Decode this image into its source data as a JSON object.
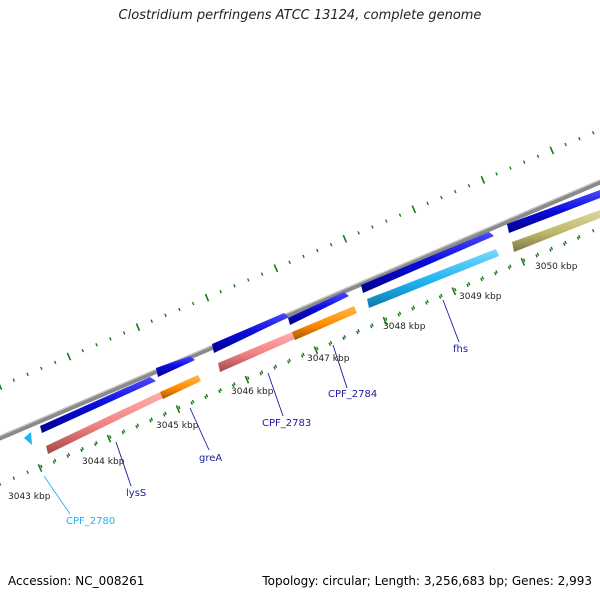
{
  "title": "Clostridium perfringens ATCC 13124, complete genome",
  "footer": {
    "accession_label": "Accession: NC_008261",
    "topology": "Topology: circular",
    "length": "Length: 3,256,683 bp",
    "genes": "Genes: 2,993"
  },
  "colors": {
    "backbone": "#8a8a8a",
    "strand_forward": "#0a0adc",
    "cds_pink": "#f08080",
    "cds_orange": "#ff8c00",
    "cds_cyan": "#1eb4f0",
    "cds_olive": "#bdb76b",
    "tick": "#1a7a1a",
    "label_blue": "#1a1aa0",
    "label_cyan": "#1eb4f0"
  },
  "scale_labels": [
    "3043 kbp",
    "3044 kbp",
    "3045 kbp",
    "3046 kbp",
    "3047 kbp",
    "3048 kbp",
    "3049 kbp",
    "3050 kbp"
  ],
  "gene_labels": [
    {
      "name": "CPF_2780",
      "color": "cds_cyan"
    },
    {
      "name": "lysS",
      "color": "label_blue"
    },
    {
      "name": "greA",
      "color": "label_blue"
    },
    {
      "name": "CPF_2783",
      "color": "label_blue"
    },
    {
      "name": "CPF_2784",
      "color": "label_blue"
    },
    {
      "name": "fhs",
      "color": "label_blue"
    }
  ]
}
